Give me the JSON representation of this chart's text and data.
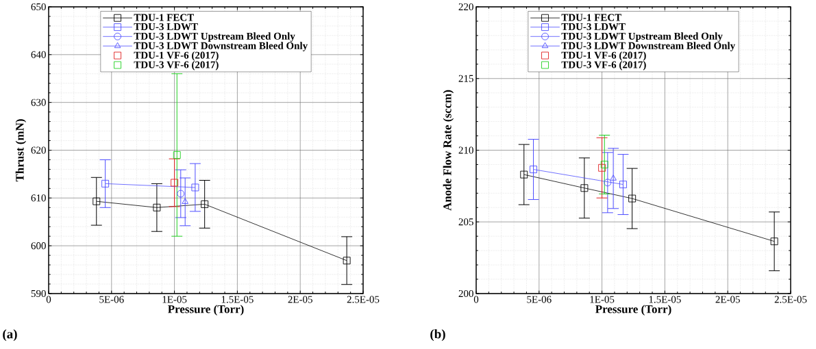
{
  "chart_data": [
    {
      "type": "line",
      "xlabel": "Pressure (Torr)",
      "ylabel": "Thrust (mN)",
      "annotations": [
        "(a)"
      ],
      "xlim": [
        0,
        2.5e-05
      ],
      "ylim": [
        590,
        650
      ],
      "xticks": [
        0,
        {
          "value": 5e-06,
          "label": "5E-06"
        },
        {
          "value": 1e-05,
          "label": "1E-05"
        },
        {
          "value": 1.5e-05,
          "label": "1.5E-05"
        },
        {
          "value": 2e-05,
          "label": "2E-05"
        },
        {
          "value": 2.5e-05,
          "label": "2.5E-05"
        }
      ],
      "yticks": [
        590,
        600,
        610,
        620,
        630,
        640,
        650
      ],
      "grid": true,
      "legend": "top",
      "series": [
        {
          "name": "TDU-1 FECT",
          "color": "#000000",
          "marker": "square",
          "x": [
            3.8e-06,
            8.6e-06,
            1.24e-05,
            2.37e-05
          ],
          "values": [
            609.3,
            608.0,
            608.7,
            596.9
          ],
          "errors": [
            5,
            5,
            5,
            5
          ]
        },
        {
          "name": "TDU-3 LDWT",
          "color": "#4d4dff",
          "marker": "square",
          "x": [
            4.5e-06,
            1.165e-05
          ],
          "values": [
            613.0,
            612.2
          ],
          "errors": [
            5,
            5
          ]
        },
        {
          "name": "TDU-3 LDWT Upstream Bleed Only",
          "color": "#4d4dff",
          "marker": "circle",
          "x": [
            1.05e-05
          ],
          "values": [
            610.9
          ],
          "errors": [
            5
          ]
        },
        {
          "name": "TDU-3 LDWT Downstream Bleed Only",
          "color": "#4d4dff",
          "marker": "triangle",
          "x": [
            1.085e-05
          ],
          "values": [
            609.2
          ],
          "errors": [
            5
          ]
        },
        {
          "name": "TDU-1 VF-6 (2017)",
          "type": "scatter",
          "color": "#e02020",
          "marker": "square",
          "x": [
            1e-05
          ],
          "values": [
            613.2
          ],
          "errors": [
            5
          ]
        },
        {
          "name": "TDU-3 VF-6 (2017)",
          "type": "scatter",
          "color": "#20d020",
          "marker": "square",
          "x": [
            1.02e-05
          ],
          "values": [
            619.0
          ],
          "errors": [
            17
          ]
        }
      ]
    },
    {
      "type": "line",
      "xlabel": "Pressure (Torr)",
      "ylabel": "Anode Flow Rate (sccm)",
      "annotations": [
        "(b)"
      ],
      "xlim": [
        0,
        2.5e-05
      ],
      "ylim": [
        200,
        220
      ],
      "xticks": [
        0,
        {
          "value": 5e-06,
          "label": "5E-06"
        },
        {
          "value": 1e-05,
          "label": "1E-05"
        },
        {
          "value": 1.5e-05,
          "label": "1.5E-05"
        },
        {
          "value": 2e-05,
          "label": "2E-05"
        },
        {
          "value": 2.5e-05,
          "label": "2.5E-05"
        }
      ],
      "yticks": [
        200,
        205,
        210,
        215,
        220
      ],
      "grid": true,
      "legend": "top",
      "series": [
        {
          "name": "TDU-1 FECT",
          "color": "#000000",
          "marker": "square",
          "x": [
            3.8e-06,
            8.6e-06,
            1.24e-05,
            2.37e-05
          ],
          "values": [
            208.3,
            207.36,
            206.63,
            203.64
          ],
          "errors": [
            2.1,
            2.1,
            2.1,
            2.05
          ]
        },
        {
          "name": "TDU-3 LDWT",
          "color": "#4d4dff",
          "marker": "square",
          "x": [
            4.55e-06,
            1.168e-05
          ],
          "values": [
            208.66,
            207.61
          ],
          "errors": [
            2.1,
            2.1
          ]
        },
        {
          "name": "TDU-3 LDWT Upstream Bleed Only",
          "color": "#4d4dff",
          "marker": "circle",
          "x": [
            1.045e-05
          ],
          "values": [
            207.74
          ],
          "errors": [
            2.1
          ]
        },
        {
          "name": "TDU-3 LDWT Downstream Bleed Only",
          "color": "#4d4dff",
          "marker": "triangle",
          "x": [
            1.09e-05
          ],
          "values": [
            208.03
          ],
          "errors": [
            2.1
          ]
        },
        {
          "name": "TDU-1 VF-6 (2017)",
          "type": "scatter",
          "color": "#e02020",
          "marker": "square",
          "x": [
            1e-05
          ],
          "values": [
            208.77
          ],
          "errors": [
            2.1
          ]
        },
        {
          "name": "TDU-3 VF-6 (2017)",
          "type": "scatter",
          "color": "#20d020",
          "marker": "square",
          "x": [
            1.02e-05
          ],
          "values": [
            209.0
          ],
          "errors": [
            2.05
          ]
        }
      ]
    }
  ]
}
